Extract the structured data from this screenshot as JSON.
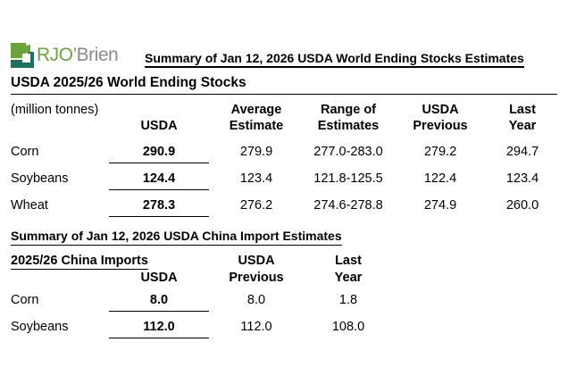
{
  "logo": {
    "name_green": "RJO",
    "name_gray": "’Brien"
  },
  "main_title": "Summary of Jan 12, 2026 USDA World Ending Stocks Estimates",
  "world_section": {
    "heading": "USDA 2025/26 World Ending Stocks",
    "unit_label": "(million tonnes)",
    "columns": [
      {
        "line1": "",
        "line2": "USDA"
      },
      {
        "line1": "Average",
        "line2": "Estimate"
      },
      {
        "line1": "Range of",
        "line2": "Estimates"
      },
      {
        "line1": "USDA",
        "line2": "Previous"
      },
      {
        "line1": "Last",
        "line2": "Year"
      }
    ],
    "rows": [
      {
        "commodity": "Corn",
        "usda": "290.9",
        "average": "279.9",
        "range": "277.0-283.0",
        "previous": "279.2",
        "last_year": "294.7"
      },
      {
        "commodity": "Soybeans",
        "usda": "124.4",
        "average": "123.4",
        "range": "121.8-125.5",
        "previous": "122.4",
        "last_year": "123.4"
      },
      {
        "commodity": "Wheat",
        "usda": "278.3",
        "average": "276.2",
        "range": "274.6-278.8",
        "previous": "274.9",
        "last_year": "260.0"
      }
    ]
  },
  "china_section": {
    "heading": "Summary of Jan 12, 2026 USDA China Import Estimates",
    "subheading": "2025/26 China Imports",
    "columns": [
      {
        "line1": "",
        "line2": "USDA"
      },
      {
        "line1": "USDA",
        "line2": "Previous"
      },
      {
        "line1": "Last",
        "line2": "Year"
      }
    ],
    "rows": [
      {
        "commodity": "Corn",
        "usda": "8.0",
        "previous": "8.0",
        "last_year": "1.8"
      },
      {
        "commodity": "Soybeans",
        "usda": "112.0",
        "previous": "112.0",
        "last_year": "108.0"
      }
    ]
  },
  "colors": {
    "logo_green": "#69a43d",
    "logo_teal": "#1b735f",
    "logo_gray": "#8a8a8a"
  }
}
